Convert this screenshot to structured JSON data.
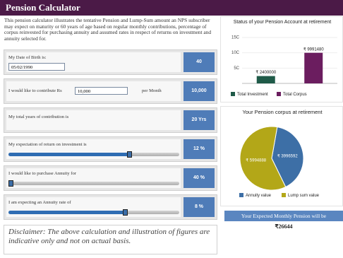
{
  "header": {
    "title": "Pension Calculator"
  },
  "intro": "This pension calculator illustrates the tentative Pension and Lump-Sum amount an NPS subscriber may expect on maturity or 60 years of age based on regular monthly contributions, percentage of corpus reinvested for purchasing annuity and assumed rates in respect of returns on investment and annuity selected for.",
  "form": {
    "rows": [
      {
        "label": "My Date of Birth is:",
        "input": "05/02/1990",
        "result": "40"
      },
      {
        "label": "I would like to contribute Rs",
        "input": "10,000",
        "suffix": "per Month",
        "result": "10,000"
      },
      {
        "label": "My total years of contribution is",
        "result": "20 Yrs"
      },
      {
        "label": "My expectation of return on investment is",
        "result": "12 %"
      },
      {
        "label": "I would like to purchase Annuity for",
        "result": "40 %"
      },
      {
        "label": "I am expecting an Annuity rate of",
        "result": "8 %"
      }
    ]
  },
  "disclaimer": "Disclaimer: The above calculation and illustration of figures are indicative only and not on actual basis.",
  "chart_data": [
    {
      "type": "bar",
      "title": "Status of your Pension Account at retirement",
      "categories": [
        "Total Investment",
        "Total Corpus"
      ],
      "values": [
        2400000,
        9991480
      ],
      "value_labels": [
        "₹ 2400000",
        "₹ 9991480"
      ],
      "colors": [
        "#1f5a48",
        "#6b1d5f"
      ],
      "ylim": [
        0,
        15000000
      ],
      "yticks": [
        {
          "value": 5000000,
          "label": "5C"
        },
        {
          "value": 10000000,
          "label": "10C"
        },
        {
          "value": 15000000,
          "label": "15C"
        }
      ],
      "grid": true
    },
    {
      "type": "pie",
      "title": "Your Pension corpus at retirement",
      "categories": [
        "Annuity value",
        "Lump sum value"
      ],
      "values": [
        3996592,
        5994888
      ],
      "value_labels": [
        "₹ 3996592",
        "₹ 5994888"
      ],
      "colors": [
        "#3d6fa6",
        "#b3a718"
      ]
    }
  ],
  "pension": {
    "label": "Your Expected Monthly Pension will be",
    "amount": "₹26644"
  }
}
